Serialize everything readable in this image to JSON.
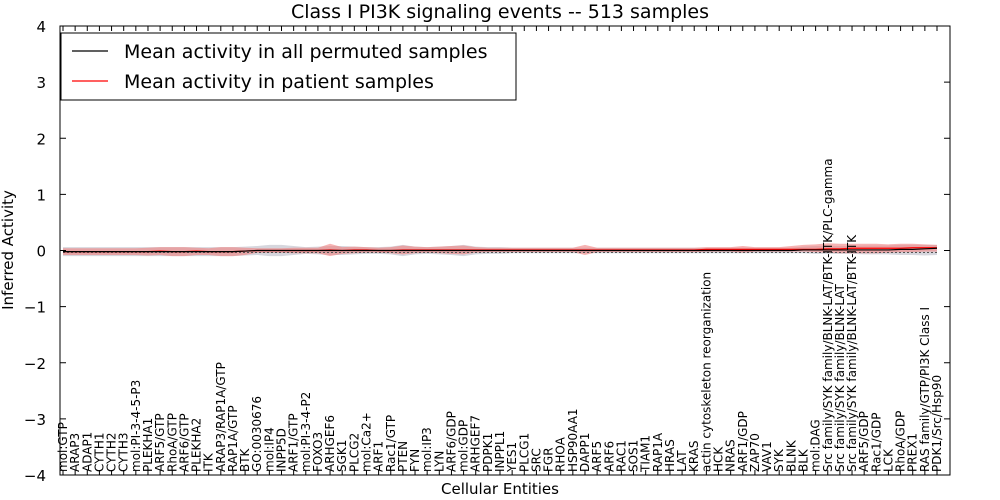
{
  "chart_data": {
    "type": "line",
    "title": "Class I PI3K signaling events -- 513 samples",
    "xlabel": "Cellular Entities",
    "ylabel": "Inferred Activity",
    "ylim": [
      -4,
      4
    ],
    "yticks": [
      -4,
      -3,
      -2,
      -1,
      0,
      1,
      2,
      3,
      4
    ],
    "ytick_labels": [
      "−4",
      "−3",
      "−2",
      "−1",
      "0",
      "1",
      "2",
      "3",
      "4"
    ],
    "legend_position": "top-left",
    "legend": [
      {
        "label": "Mean activity in all permuted samples",
        "color": "#000000"
      },
      {
        "label": "Mean activity in patient samples",
        "color": "#ff0000"
      }
    ],
    "colors": {
      "patient": "#ff0000",
      "patient_band": "#f08080",
      "permuted": "#000000",
      "permuted_band": "#c8c8d2",
      "zero_line": "#555555"
    },
    "categories": [
      "mol:GTP",
      "ARAP3",
      "ADAP1",
      "CYTH1",
      "CYTH2",
      "CYTH3",
      "mol:PI-3-4-5-P3",
      "PLEKHA1",
      "ARF5/GTP",
      "RhoA/GTP",
      "ARF6/GTP",
      "PLEKHA2",
      "ITK",
      "ARAP3/RAP1A/GTP",
      "RAP1A/GTP",
      "BTK",
      "GO:0030676",
      "mol:IP4",
      "INPP5D",
      "ARF1/GTP",
      "mol:PI-3-4-P2",
      "FOXO3",
      "ARHGEF6",
      "SGK1",
      "PLCG2",
      "mol:Ca2+",
      "ARF1",
      "Rac1/GTP",
      "PTEN",
      "FYN",
      "mol:IP3",
      "LYN",
      "ARF6/GDP",
      "mol:GDP",
      "ARHGEF7",
      "PDPK1",
      "INPPL1",
      "YES1",
      "PLCG1",
      "SRC",
      "FGR",
      "RHOA",
      "HSP90AA1",
      "DAPP1",
      "ARF5",
      "ARF6",
      "RAC1",
      "SOS1",
      "TIAM1",
      "RAP1A",
      "HRAS",
      "LAT",
      "KRAS",
      "actin cytoskeleton reorganization",
      "HCK",
      "NRAS",
      "ARF1/GDP",
      "ZAP70",
      "VAV1",
      "SYK",
      "BLNK",
      "BLK",
      "mol:DAG",
      "Src family/SYK family/BLNK-LAT/BTK-ITK/PLC-gamma",
      "Src family/SYK family/BLNK-LAT",
      "Src family/SYK family/BLNK-LAT/BTK-ITK",
      "ARF5/GDP",
      "Rac1/GDP",
      "LCK",
      "RhoA/GDP",
      "PREX1",
      "RAS family/GTP/PI3K Class I",
      "PDK1/Src/Hsp90"
    ],
    "series": [
      {
        "name": "Mean activity in patient samples",
        "values": [
          -0.02,
          -0.02,
          -0.02,
          -0.02,
          -0.02,
          -0.02,
          -0.02,
          -0.02,
          -0.01,
          -0.02,
          -0.02,
          -0.01,
          -0.02,
          -0.02,
          -0.02,
          -0.01,
          0.0,
          0.0,
          0.0,
          0.0,
          0.0,
          0.0,
          0.01,
          0.0,
          0.01,
          0.01,
          0.0,
          0.0,
          0.01,
          0.01,
          0.01,
          0.01,
          0.01,
          0.01,
          0.01,
          0.01,
          0.01,
          0.01,
          0.01,
          0.01,
          0.01,
          0.01,
          0.01,
          0.01,
          0.01,
          0.01,
          0.01,
          0.01,
          0.01,
          0.01,
          0.01,
          0.01,
          0.01,
          0.02,
          0.02,
          0.02,
          0.02,
          0.02,
          0.02,
          0.02,
          0.02,
          0.02,
          0.02,
          0.03,
          0.03,
          0.04,
          0.04,
          0.04,
          0.04,
          0.04,
          0.05,
          0.05,
          0.05
        ],
        "lower": [
          -0.08,
          -0.08,
          -0.08,
          -0.08,
          -0.08,
          -0.08,
          -0.08,
          -0.09,
          -0.08,
          -0.1,
          -0.1,
          -0.08,
          -0.08,
          -0.1,
          -0.1,
          -0.08,
          -0.04,
          -0.04,
          -0.04,
          -0.05,
          -0.05,
          -0.05,
          -0.1,
          -0.06,
          -0.05,
          -0.04,
          -0.04,
          -0.05,
          -0.07,
          -0.05,
          -0.04,
          -0.05,
          -0.06,
          -0.07,
          -0.04,
          -0.03,
          -0.03,
          -0.03,
          -0.03,
          -0.03,
          -0.03,
          -0.03,
          -0.03,
          -0.08,
          -0.03,
          -0.03,
          -0.03,
          -0.03,
          -0.03,
          -0.03,
          -0.03,
          -0.03,
          -0.03,
          -0.02,
          -0.02,
          -0.02,
          -0.04,
          -0.02,
          -0.02,
          -0.02,
          -0.02,
          -0.02,
          -0.03,
          -0.04,
          -0.05,
          -0.05,
          -0.05,
          -0.05,
          -0.04,
          -0.03,
          -0.03,
          -0.02,
          -0.02
        ],
        "upper": [
          0.04,
          0.04,
          0.04,
          0.04,
          0.04,
          0.04,
          0.04,
          0.05,
          0.06,
          0.06,
          0.06,
          0.05,
          0.04,
          0.06,
          0.06,
          0.05,
          0.04,
          0.04,
          0.04,
          0.05,
          0.05,
          0.05,
          0.12,
          0.06,
          0.07,
          0.06,
          0.05,
          0.06,
          0.09,
          0.07,
          0.06,
          0.07,
          0.08,
          0.09,
          0.06,
          0.05,
          0.05,
          0.05,
          0.05,
          0.05,
          0.05,
          0.05,
          0.05,
          0.1,
          0.05,
          0.05,
          0.05,
          0.05,
          0.05,
          0.05,
          0.05,
          0.05,
          0.05,
          0.06,
          0.06,
          0.06,
          0.08,
          0.06,
          0.06,
          0.06,
          0.08,
          0.1,
          0.11,
          0.13,
          0.12,
          0.12,
          0.12,
          0.12,
          0.11,
          0.12,
          0.12,
          0.11,
          0.1
        ]
      },
      {
        "name": "Mean activity in all permuted samples",
        "values": [
          -0.02,
          -0.02,
          -0.02,
          -0.02,
          -0.02,
          -0.02,
          -0.02,
          -0.02,
          -0.02,
          -0.02,
          -0.02,
          -0.02,
          -0.02,
          -0.02,
          -0.02,
          -0.01,
          0.0,
          0.0,
          0.0,
          0.0,
          0.0,
          0.0,
          0.0,
          0.0,
          0.0,
          0.0,
          0.0,
          0.0,
          0.0,
          0.0,
          0.0,
          0.0,
          0.0,
          0.0,
          0.0,
          0.0,
          0.0,
          0.0,
          0.0,
          0.0,
          0.0,
          0.0,
          0.0,
          0.0,
          0.0,
          0.0,
          0.0,
          0.0,
          0.0,
          0.0,
          0.0,
          0.0,
          0.0,
          0.0,
          0.0,
          0.0,
          0.0,
          0.0,
          0.0,
          0.0,
          0.0,
          0.01,
          0.01,
          0.01,
          0.01,
          0.01,
          0.01,
          0.01,
          0.01,
          0.02,
          0.02,
          0.03,
          0.04
        ],
        "lower": [
          -0.1,
          -0.1,
          -0.1,
          -0.1,
          -0.1,
          -0.1,
          -0.1,
          -0.1,
          -0.1,
          -0.1,
          -0.1,
          -0.1,
          -0.1,
          -0.1,
          -0.1,
          -0.09,
          -0.08,
          -0.1,
          -0.1,
          -0.08,
          -0.06,
          -0.07,
          -0.08,
          -0.08,
          -0.07,
          -0.06,
          -0.06,
          -0.07,
          -0.1,
          -0.07,
          -0.06,
          -0.07,
          -0.08,
          -0.1,
          -0.07,
          -0.06,
          -0.06,
          -0.05,
          -0.05,
          -0.05,
          -0.05,
          -0.05,
          -0.05,
          -0.05,
          -0.05,
          -0.05,
          -0.05,
          -0.05,
          -0.05,
          -0.05,
          -0.05,
          -0.05,
          -0.05,
          -0.05,
          -0.05,
          -0.05,
          -0.05,
          -0.05,
          -0.05,
          -0.05,
          -0.05,
          -0.05,
          -0.06,
          -0.06,
          -0.06,
          -0.06,
          -0.07,
          -0.07,
          -0.07,
          -0.08,
          -0.08,
          -0.09,
          -0.08
        ],
        "upper": [
          0.06,
          0.06,
          0.06,
          0.06,
          0.06,
          0.06,
          0.06,
          0.06,
          0.06,
          0.06,
          0.06,
          0.06,
          0.06,
          0.06,
          0.06,
          0.07,
          0.08,
          0.1,
          0.1,
          0.08,
          0.06,
          0.07,
          0.08,
          0.08,
          0.07,
          0.06,
          0.06,
          0.07,
          0.1,
          0.07,
          0.06,
          0.07,
          0.08,
          0.1,
          0.07,
          0.06,
          0.06,
          0.05,
          0.05,
          0.05,
          0.05,
          0.05,
          0.05,
          0.05,
          0.05,
          0.05,
          0.05,
          0.05,
          0.05,
          0.05,
          0.05,
          0.05,
          0.05,
          0.05,
          0.05,
          0.05,
          0.05,
          0.05,
          0.05,
          0.05,
          0.05,
          0.07,
          0.08,
          0.08,
          0.08,
          0.08,
          0.09,
          0.09,
          0.09,
          0.1,
          0.1,
          0.1,
          0.1
        ]
      }
    ]
  }
}
